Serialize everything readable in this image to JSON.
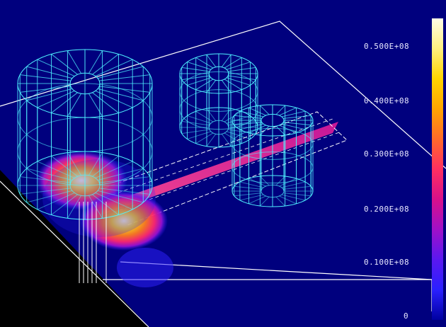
{
  "colorbar": {
    "tick_labels": [
      "0.500E+08",
      "0.400E+08",
      "0.300E+08",
      "0.200E+08",
      "0.100E+08",
      "0"
    ],
    "colors": [
      "#fffde8",
      "#fff080",
      "#ffd400",
      "#ffa500",
      "#ff6a2a",
      "#ff2f60",
      "#d8108a",
      "#a010c8",
      "#5a18f0",
      "#2a20ff",
      "#0000a0"
    ]
  },
  "palette": {
    "background": "#00007e",
    "wire": "#4ff2ff",
    "outline": "#ffffff"
  }
}
